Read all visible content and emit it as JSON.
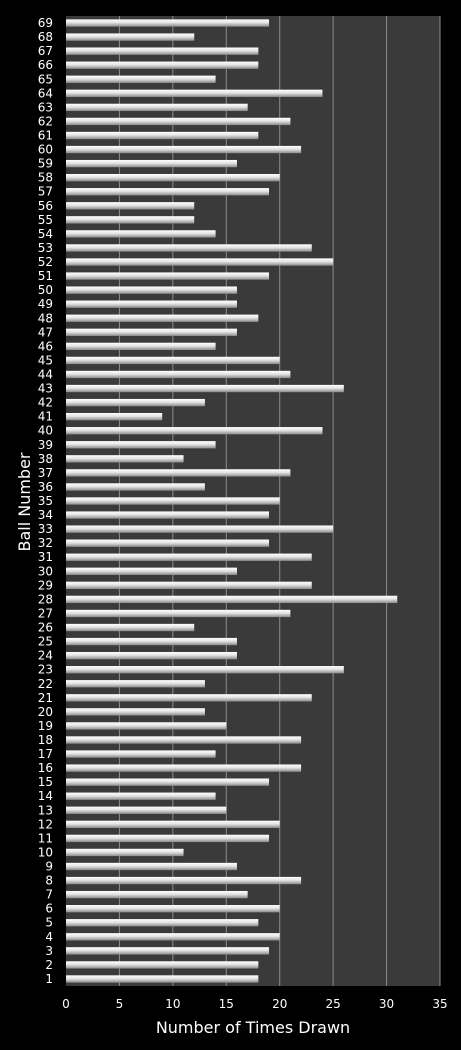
{
  "chart_data": {
    "type": "bar",
    "orientation": "horizontal",
    "title": "",
    "xlabel": "Number of Times Drawn",
    "ylabel": "Ball Number",
    "xlim": [
      0,
      35
    ],
    "xticks": [
      0,
      5,
      10,
      15,
      20,
      25,
      30,
      35
    ],
    "grid": true,
    "categories": [
      "1",
      "2",
      "3",
      "4",
      "5",
      "6",
      "7",
      "8",
      "9",
      "10",
      "11",
      "12",
      "13",
      "14",
      "15",
      "16",
      "17",
      "18",
      "19",
      "20",
      "21",
      "22",
      "23",
      "24",
      "25",
      "26",
      "27",
      "28",
      "29",
      "30",
      "31",
      "32",
      "33",
      "34",
      "35",
      "36",
      "37",
      "38",
      "39",
      "40",
      "41",
      "42",
      "43",
      "44",
      "45",
      "46",
      "47",
      "48",
      "49",
      "50",
      "51",
      "52",
      "53",
      "54",
      "55",
      "56",
      "57",
      "58",
      "59",
      "60",
      "61",
      "62",
      "63",
      "64",
      "65",
      "66",
      "67",
      "68",
      "69"
    ],
    "values": [
      18,
      18,
      19,
      20,
      18,
      20,
      17,
      22,
      16,
      11,
      19,
      20,
      15,
      14,
      19,
      22,
      14,
      22,
      15,
      13,
      23,
      13,
      26,
      16,
      16,
      12,
      21,
      31,
      23,
      16,
      23,
      19,
      25,
      19,
      20,
      13,
      21,
      11,
      14,
      24,
      9,
      13,
      26,
      21,
      20,
      14,
      16,
      18,
      16,
      16,
      19,
      25,
      23,
      14,
      12,
      12,
      19,
      20,
      16,
      22,
      18,
      21,
      17,
      24,
      14,
      18,
      18,
      12,
      19
    ],
    "colors": {
      "background": "#000000",
      "plot_area": "#3a3a3a",
      "gridline": "#8c8c8c",
      "bar": "#e6e6e6",
      "text": "#ffffff"
    }
  }
}
